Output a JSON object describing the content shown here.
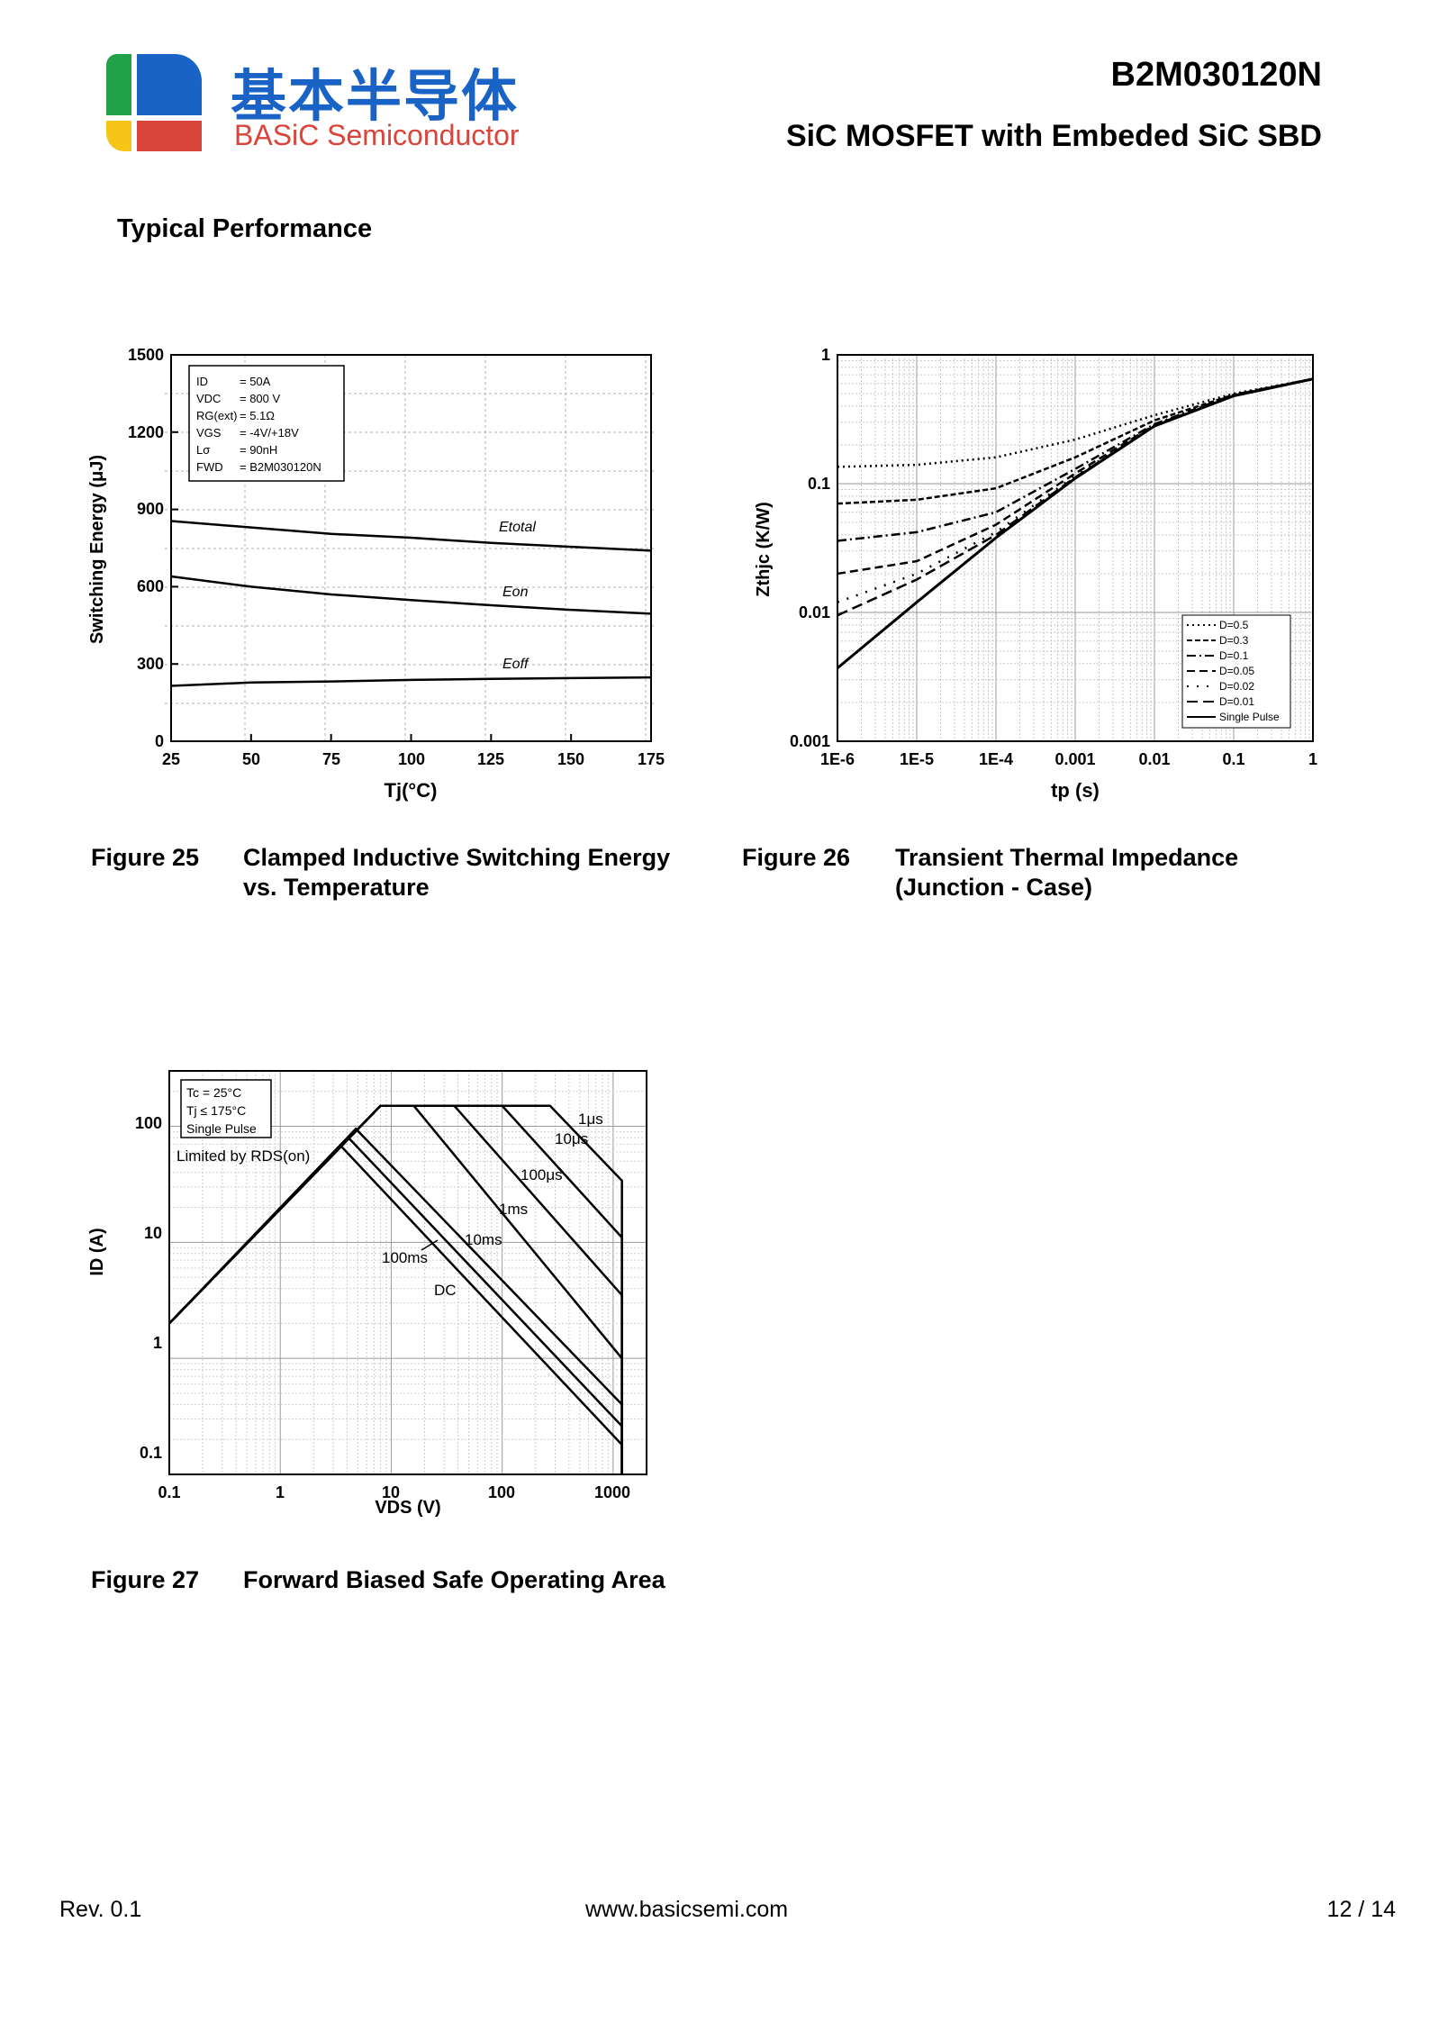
{
  "header": {
    "logo_cn": "基本半导体",
    "logo_en": "BASiC Semiconductor",
    "part_number": "B2M030120N",
    "title": "SiC MOSFET with Embeded SiC SBD",
    "colors": {
      "green": "#21a14a",
      "blue": "#1a63c6",
      "yellow": "#f5c518",
      "red": "#d9443b"
    }
  },
  "section_title": "Typical Performance",
  "figures": [
    {
      "number": "Figure 25",
      "title_line1": "Clamped Inductive Switching Energy",
      "title_line2": "vs. Temperature"
    },
    {
      "number": "Figure 26",
      "title_line1": "Transient Thermal Impedance",
      "title_line2": "(Junction - Case)"
    },
    {
      "number": "Figure 27",
      "title_line1": "Forward Biased Safe Operating Area",
      "title_line2": ""
    }
  ],
  "footer": {
    "rev": "Rev. 0.1",
    "website": "www.basicsemi.com",
    "page": "12  /  14"
  },
  "chart_data": [
    {
      "type": "line",
      "title": "Clamped Inductive Switching Energy vs. Temperature",
      "xlabel": "Tj(°C)",
      "ylabel": "Switching Energy (μJ)",
      "xlim": [
        25,
        175
      ],
      "ylim": [
        0,
        1500
      ],
      "xticks": [
        "25",
        "50",
        "75",
        "100",
        "125",
        "150",
        "175"
      ],
      "yticks": [
        "0",
        "300",
        "600",
        "900",
        "1200",
        "1500"
      ],
      "legend_box": [
        {
          "param": "ID",
          "value": "= 50A"
        },
        {
          "param": "VDC",
          "value": "= 800 V"
        },
        {
          "param": "RG(ext)",
          "value": "= 5.1Ω"
        },
        {
          "param": "VGS",
          "value": "= -4V/+18V"
        },
        {
          "param": "Lσ",
          "value": "= 90nH"
        },
        {
          "param": "FWD",
          "value": "= B2M030120N"
        }
      ],
      "x": [
        25,
        50,
        75,
        100,
        125,
        150,
        175
      ],
      "series": [
        {
          "name": "Etotal",
          "values": [
            855,
            830,
            805,
            790,
            770,
            755,
            740
          ]
        },
        {
          "name": "Eon",
          "values": [
            640,
            600,
            570,
            548,
            528,
            510,
            495
          ]
        },
        {
          "name": "Eoff",
          "values": [
            215,
            228,
            232,
            238,
            242,
            245,
            248
          ]
        }
      ]
    },
    {
      "type": "line",
      "title": "Transient Thermal Impedance (Junction - Case)",
      "xlabel": "tp (s)",
      "ylabel": "Zthjc (K/W)",
      "x_scale": "log",
      "y_scale": "log",
      "xlim": [
        1e-06,
        1
      ],
      "ylim": [
        0.001,
        1
      ],
      "xticks": [
        "1E-6",
        "1E-5",
        "1E-4",
        "0.001",
        "0.01",
        "0.1",
        "1"
      ],
      "yticks": [
        "0.001",
        "0.01",
        "0.1",
        "1"
      ],
      "legend": "bottom-right",
      "x": [
        1e-06,
        1e-05,
        0.0001,
        0.001,
        0.01,
        0.1,
        1
      ],
      "series": [
        {
          "name": "D=0.5",
          "values": [
            0.135,
            0.14,
            0.16,
            0.22,
            0.34,
            0.5,
            0.65
          ]
        },
        {
          "name": "D=0.3",
          "values": [
            0.07,
            0.075,
            0.092,
            0.16,
            0.31,
            0.49,
            0.65
          ]
        },
        {
          "name": "D=0.1",
          "values": [
            0.036,
            0.042,
            0.06,
            0.13,
            0.29,
            0.49,
            0.65
          ]
        },
        {
          "name": "D=0.05",
          "values": [
            0.02,
            0.025,
            0.048,
            0.12,
            0.285,
            0.48,
            0.65
          ]
        },
        {
          "name": "D=0.02",
          "values": [
            0.012,
            0.02,
            0.042,
            0.115,
            0.28,
            0.48,
            0.65
          ]
        },
        {
          "name": "D=0.01",
          "values": [
            0.0095,
            0.018,
            0.04,
            0.112,
            0.28,
            0.48,
            0.65
          ]
        },
        {
          "name": "Single Pulse",
          "values": [
            0.0037,
            0.012,
            0.038,
            0.11,
            0.28,
            0.48,
            0.65
          ]
        }
      ]
    },
    {
      "type": "line",
      "title": "Forward Biased Safe Operating Area",
      "xlabel": "VDS (V)",
      "ylabel": "ID (A)",
      "x_scale": "log",
      "y_scale": "log",
      "xlim": [
        0.1,
        2000
      ],
      "ylim": [
        0.1,
        300
      ],
      "xticks": [
        "0.1",
        "1",
        "10",
        "100",
        "1000"
      ],
      "yticks": [
        "0.1",
        "1",
        "10",
        "100"
      ],
      "legend_box": [
        "Tc = 25°C",
        "Tj ≤ 175°C",
        "Single Pulse"
      ],
      "annotation": "Limited by RDS(on)",
      "rdson_limit": {
        "x": [
          0.1,
          8
        ],
        "values": [
          2,
          150
        ]
      },
      "current_limit": 150,
      "vds_limit": 1200,
      "series": [
        {
          "name": "1μs",
          "x": [
            0.1,
            8,
            270,
            1200,
            1200
          ],
          "values": [
            2,
            150,
            150,
            34,
            0.1
          ]
        },
        {
          "name": "10μs",
          "x": [
            0.1,
            8,
            100,
            1200,
            1200
          ],
          "values": [
            2,
            150,
            150,
            11,
            0.1
          ]
        },
        {
          "name": "100μs",
          "x": [
            0.1,
            8,
            37,
            1200,
            1200
          ],
          "values": [
            2,
            150,
            150,
            3.5,
            0.1
          ]
        },
        {
          "name": "1ms",
          "x": [
            0.1,
            8,
            16,
            1200,
            1200
          ],
          "values": [
            2,
            150,
            150,
            1,
            0.1
          ]
        },
        {
          "name": "10ms",
          "x": [
            0.1,
            4.8,
            1200,
            1200
          ],
          "values": [
            2,
            95,
            0.4,
            0.1
          ]
        },
        {
          "name": "100ms",
          "x": [
            0.1,
            4.1,
            1200,
            1200
          ],
          "values": [
            2,
            80,
            0.26,
            0.1
          ]
        },
        {
          "name": "DC",
          "x": [
            0.1,
            3.5,
            1200,
            1200
          ],
          "values": [
            2,
            68,
            0.18,
            0.1
          ]
        }
      ]
    }
  ]
}
